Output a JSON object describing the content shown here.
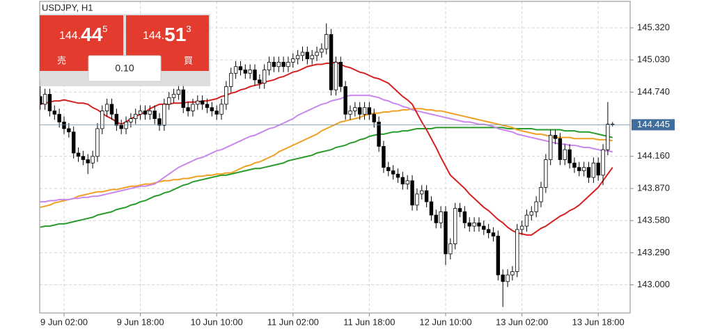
{
  "chart_data": {
    "type": "candlestick",
    "title": "USDJPY, H1",
    "categories": [
      null,
      null,
      null,
      null,
      null,
      "9 Jun 02:00",
      null,
      null,
      null,
      null,
      null,
      null,
      null,
      null,
      null,
      null,
      null,
      null,
      null,
      null,
      null,
      "9 Jun 18:00",
      null,
      null,
      null,
      null,
      null,
      null,
      null,
      null,
      null,
      null,
      null,
      null,
      null,
      null,
      null,
      "10 Jun 10:00",
      null,
      null,
      null,
      null,
      null,
      null,
      null,
      null,
      null,
      null,
      null,
      null,
      null,
      null,
      null,
      "11 Jun 02:00",
      null,
      null,
      null,
      null,
      null,
      null,
      null,
      null,
      null,
      null,
      null,
      null,
      null,
      null,
      null,
      "11 Jun 18:00",
      null,
      null,
      null,
      null,
      null,
      null,
      null,
      null,
      null,
      null,
      null,
      null,
      null,
      null,
      null,
      "12 Jun 10:00",
      null,
      null,
      null,
      null,
      null,
      null,
      null,
      null,
      null,
      null,
      null,
      null,
      null,
      null,
      null,
      "13 Jun 02:00",
      null,
      null,
      null,
      null,
      null,
      null,
      null,
      null,
      null,
      null,
      null,
      null,
      null,
      null,
      null,
      "13 Jun 18:00",
      null,
      null,
      null
    ],
    "open": [
      144.7,
      144.63,
      144.72,
      144.57,
      144.54,
      144.47,
      144.41,
      144.38,
      144.19,
      144.16,
      144.13,
      144.1,
      144.16,
      144.41,
      144.57,
      144.63,
      144.54,
      144.44,
      144.41,
      144.47,
      144.5,
      144.54,
      144.57,
      144.54,
      144.57,
      144.5,
      144.44,
      144.63,
      144.69,
      144.72,
      144.76,
      144.6,
      144.57,
      144.63,
      144.66,
      144.63,
      144.6,
      144.57,
      144.54,
      144.63,
      144.79,
      144.91,
      144.97,
      144.94,
      144.91,
      144.94,
      144.85,
      144.82,
      144.94,
      145.01,
      144.97,
      145.01,
      144.97,
      145.01,
      145.04,
      145.07,
      145.1,
      145.04,
      145.07,
      145.1,
      145.13,
      145.26,
      144.76,
      145.01,
      144.79,
      144.54,
      144.57,
      144.6,
      144.54,
      144.6,
      144.54,
      144.47,
      144.25,
      144.06,
      144.03,
      144.0,
      143.97,
      143.91,
      143.94,
      143.72,
      143.82,
      143.85,
      143.75,
      143.63,
      143.56,
      143.66,
      143.28,
      143.37,
      143.69,
      143.66,
      143.56,
      143.53,
      143.56,
      143.53,
      143.5,
      143.47,
      143.44,
      143.09,
      143.03,
      143.09,
      143.12,
      143.5,
      143.53,
      143.63,
      143.66,
      143.75,
      143.88,
      144.13,
      144.35,
      144.32,
      144.13,
      144.22,
      144.1,
      144.06,
      144.03,
      144.06,
      143.97,
      144.1,
      143.99,
      144.22,
      144.45
    ],
    "high": [
      144.85,
      144.77,
      144.77,
      144.62,
      144.59,
      144.52,
      144.46,
      144.43,
      144.24,
      144.21,
      144.18,
      144.21,
      144.46,
      144.62,
      144.68,
      144.68,
      144.59,
      144.49,
      144.52,
      144.55,
      144.59,
      144.62,
      144.62,
      144.62,
      144.62,
      144.55,
      144.68,
      144.74,
      144.77,
      144.81,
      144.81,
      144.65,
      144.68,
      144.71,
      144.71,
      144.68,
      144.65,
      144.62,
      144.68,
      144.84,
      144.96,
      145.02,
      145.02,
      144.99,
      144.99,
      144.99,
      144.9,
      144.99,
      145.06,
      145.06,
      145.06,
      145.06,
      145.06,
      145.09,
      145.12,
      145.15,
      145.15,
      145.12,
      145.15,
      145.18,
      145.36,
      145.31,
      145.06,
      145.06,
      144.84,
      144.62,
      144.65,
      144.65,
      144.65,
      144.65,
      144.59,
      144.52,
      144.3,
      144.11,
      144.08,
      144.05,
      144.02,
      143.99,
      143.99,
      143.87,
      143.9,
      143.9,
      143.8,
      143.68,
      143.71,
      143.71,
      143.42,
      143.74,
      143.74,
      143.71,
      143.61,
      143.61,
      143.61,
      143.58,
      143.55,
      143.52,
      143.49,
      143.14,
      143.14,
      143.17,
      143.55,
      143.58,
      143.68,
      143.71,
      143.8,
      143.93,
      144.18,
      144.4,
      144.4,
      144.37,
      144.27,
      144.27,
      144.15,
      144.11,
      144.11,
      144.11,
      144.15,
      144.15,
      144.27,
      144.65,
      144.47
    ],
    "low": [
      144.58,
      144.58,
      144.52,
      144.49,
      144.42,
      144.36,
      144.33,
      144.14,
      144.11,
      144.08,
      144.0,
      144.05,
      144.11,
      144.36,
      144.52,
      144.49,
      144.39,
      144.36,
      144.36,
      144.42,
      144.45,
      144.49,
      144.49,
      144.49,
      144.45,
      144.39,
      144.39,
      144.58,
      144.64,
      144.67,
      144.55,
      144.52,
      144.52,
      144.58,
      144.58,
      144.55,
      144.52,
      144.49,
      144.49,
      144.58,
      144.74,
      144.86,
      144.89,
      144.86,
      144.86,
      144.8,
      144.77,
      144.77,
      144.89,
      144.92,
      144.92,
      144.92,
      144.92,
      144.96,
      144.99,
      145.02,
      144.99,
      144.99,
      145.02,
      145.05,
      145.08,
      144.71,
      144.71,
      144.74,
      144.49,
      144.49,
      144.52,
      144.49,
      144.49,
      144.49,
      144.42,
      144.2,
      144.01,
      143.98,
      143.95,
      143.92,
      143.86,
      143.86,
      143.67,
      143.67,
      143.77,
      143.7,
      143.58,
      143.51,
      143.51,
      143.18,
      143.23,
      143.32,
      143.61,
      143.51,
      143.48,
      143.48,
      143.48,
      143.45,
      143.42,
      143.39,
      143.04,
      142.8,
      142.98,
      143.04,
      143.07,
      143.45,
      143.48,
      143.58,
      143.61,
      143.7,
      143.83,
      144.08,
      144.27,
      144.08,
      144.08,
      144.05,
      144.01,
      143.98,
      143.98,
      143.92,
      143.92,
      143.94,
      143.9,
      144.17,
      144.43
    ],
    "close": [
      144.63,
      144.72,
      144.57,
      144.54,
      144.47,
      144.41,
      144.38,
      144.19,
      144.16,
      144.13,
      144.1,
      144.16,
      144.41,
      144.57,
      144.63,
      144.54,
      144.44,
      144.41,
      144.47,
      144.5,
      144.54,
      144.57,
      144.54,
      144.57,
      144.5,
      144.44,
      144.63,
      144.69,
      144.72,
      144.76,
      144.6,
      144.57,
      144.63,
      144.66,
      144.63,
      144.6,
      144.57,
      144.54,
      144.63,
      144.79,
      144.91,
      144.97,
      144.94,
      144.91,
      144.94,
      144.85,
      144.82,
      144.94,
      145.01,
      144.97,
      145.01,
      144.97,
      145.01,
      145.04,
      145.07,
      145.1,
      145.04,
      145.07,
      145.1,
      145.13,
      145.26,
      144.76,
      145.01,
      144.79,
      144.54,
      144.57,
      144.6,
      144.54,
      144.6,
      144.54,
      144.47,
      144.25,
      144.06,
      144.03,
      144.0,
      143.97,
      143.91,
      143.94,
      143.72,
      143.82,
      143.85,
      143.75,
      143.63,
      143.56,
      143.66,
      143.28,
      143.37,
      143.69,
      143.66,
      143.56,
      143.53,
      143.56,
      143.53,
      143.5,
      143.47,
      143.44,
      143.09,
      143.03,
      143.09,
      143.12,
      143.5,
      143.53,
      143.63,
      143.66,
      143.75,
      143.88,
      144.13,
      144.35,
      144.32,
      144.13,
      144.22,
      144.1,
      144.06,
      144.03,
      144.06,
      143.97,
      144.1,
      143.99,
      144.22,
      144.45,
      144.45
    ],
    "series": [
      {
        "color": "#2a9a2a",
        "values": [
          143.52,
          143.53,
          143.53,
          143.54,
          143.55,
          143.55,
          143.56,
          143.57,
          143.58,
          143.59,
          143.6,
          143.61,
          143.63,
          143.64,
          143.65,
          143.66,
          143.68,
          143.69,
          143.7,
          143.72,
          143.73,
          143.75,
          143.76,
          143.78,
          143.8,
          143.81,
          143.83,
          143.84,
          143.86,
          143.88,
          143.9,
          143.91,
          143.93,
          143.94,
          143.95,
          143.96,
          143.97,
          143.98,
          143.99,
          143.99,
          144.0,
          144.01,
          144.02,
          144.03,
          144.04,
          144.05,
          144.05,
          144.06,
          144.07,
          144.08,
          144.09,
          144.1,
          144.12,
          144.13,
          144.14,
          144.15,
          144.16,
          144.17,
          144.19,
          144.2,
          144.21,
          144.22,
          144.24,
          144.25,
          144.26,
          144.28,
          144.29,
          144.31,
          144.32,
          144.34,
          144.35,
          144.36,
          144.36,
          144.37,
          144.38,
          144.38,
          144.39,
          144.39,
          144.4,
          144.41,
          144.41,
          144.41,
          144.41,
          144.42,
          144.42,
          144.42,
          144.42,
          144.42,
          144.42,
          144.42,
          144.42,
          144.42,
          144.42,
          144.42,
          144.42,
          144.42,
          144.42,
          144.42,
          144.41,
          144.41,
          144.41,
          144.41,
          144.41,
          144.41,
          144.4,
          144.4,
          144.4,
          144.4,
          144.4,
          144.4,
          144.39,
          144.39,
          144.39,
          144.38,
          144.38,
          144.38,
          144.37,
          144.36,
          144.35,
          144.34,
          144.33
        ]
      },
      {
        "color": "#f0a020",
        "values": [
          143.7,
          143.71,
          143.72,
          143.74,
          143.75,
          143.76,
          143.77,
          143.78,
          143.8,
          143.81,
          143.82,
          143.83,
          143.84,
          143.84,
          143.85,
          143.86,
          143.86,
          143.87,
          143.88,
          143.89,
          143.89,
          143.9,
          143.91,
          143.91,
          143.92,
          143.93,
          143.94,
          143.94,
          143.95,
          143.95,
          143.96,
          143.96,
          143.97,
          143.98,
          143.98,
          143.99,
          143.99,
          144.0,
          144.0,
          144.01,
          144.01,
          144.03,
          144.05,
          144.07,
          144.08,
          144.1,
          144.11,
          144.13,
          144.15,
          144.17,
          144.2,
          144.22,
          144.24,
          144.26,
          144.28,
          144.3,
          144.32,
          144.34,
          144.36,
          144.39,
          144.41,
          144.43,
          144.45,
          144.47,
          144.48,
          144.49,
          144.5,
          144.51,
          144.53,
          144.54,
          144.55,
          144.55,
          144.56,
          144.56,
          144.57,
          144.57,
          144.58,
          144.58,
          144.59,
          144.59,
          144.59,
          144.58,
          144.58,
          144.57,
          144.57,
          144.56,
          144.55,
          144.54,
          144.53,
          144.52,
          144.51,
          144.5,
          144.49,
          144.48,
          144.47,
          144.46,
          144.45,
          144.44,
          144.43,
          144.42,
          144.4,
          144.39,
          144.38,
          144.37,
          144.36,
          144.36,
          144.35,
          144.34,
          144.33,
          144.33,
          144.33,
          144.33,
          144.32,
          144.32,
          144.32,
          144.32,
          144.32,
          144.31,
          144.31,
          144.31,
          144.3
        ]
      },
      {
        "color": "#c986ec",
        "values": [
          143.75,
          143.75,
          143.76,
          143.76,
          143.77,
          143.77,
          143.77,
          143.78,
          143.78,
          143.79,
          143.79,
          143.8,
          143.8,
          143.81,
          143.82,
          143.83,
          143.84,
          143.85,
          143.86,
          143.87,
          143.88,
          143.89,
          143.89,
          143.9,
          143.91,
          143.94,
          143.97,
          144.0,
          144.03,
          144.06,
          144.08,
          144.1,
          144.12,
          144.14,
          144.15,
          144.17,
          144.19,
          144.21,
          144.22,
          144.24,
          144.26,
          144.28,
          144.3,
          144.32,
          144.34,
          144.35,
          144.37,
          144.39,
          144.41,
          144.42,
          144.44,
          144.46,
          144.48,
          144.5,
          144.53,
          144.55,
          144.57,
          144.59,
          144.61,
          144.63,
          144.64,
          144.66,
          144.67,
          144.68,
          144.7,
          144.71,
          144.71,
          144.71,
          144.71,
          144.71,
          144.7,
          144.69,
          144.67,
          144.66,
          144.64,
          144.63,
          144.61,
          144.6,
          144.58,
          144.57,
          144.56,
          144.55,
          144.54,
          144.53,
          144.52,
          144.51,
          144.5,
          144.49,
          144.48,
          144.47,
          144.47,
          144.46,
          144.45,
          144.45,
          144.44,
          144.43,
          144.41,
          144.4,
          144.39,
          144.38,
          144.36,
          144.35,
          144.34,
          144.33,
          144.32,
          144.31,
          144.3,
          144.29,
          144.28,
          144.27,
          144.27,
          144.26,
          144.26,
          144.25,
          144.24,
          144.24,
          144.23,
          144.22,
          144.21,
          144.21,
          144.2
        ]
      },
      {
        "color": "#d62020",
        "values": [
          144.63,
          144.64,
          144.65,
          144.66,
          144.66,
          144.67,
          144.66,
          144.65,
          144.64,
          144.64,
          144.63,
          144.6,
          144.58,
          144.55,
          144.52,
          144.5,
          144.47,
          144.45,
          144.47,
          144.5,
          144.52,
          144.54,
          144.56,
          144.59,
          144.61,
          144.63,
          144.63,
          144.63,
          144.64,
          144.64,
          144.64,
          144.65,
          144.65,
          144.65,
          144.66,
          144.66,
          144.67,
          144.68,
          144.7,
          144.71,
          144.73,
          144.74,
          144.76,
          144.77,
          144.79,
          144.8,
          144.81,
          144.83,
          144.84,
          144.85,
          144.87,
          144.88,
          144.9,
          144.92,
          144.93,
          144.95,
          144.97,
          144.98,
          144.99,
          144.99,
          145.0,
          145.0,
          145.01,
          144.99,
          144.97,
          144.96,
          144.94,
          144.92,
          144.91,
          144.89,
          144.87,
          144.86,
          144.84,
          144.82,
          144.78,
          144.74,
          144.7,
          144.67,
          144.63,
          144.55,
          144.47,
          144.4,
          144.32,
          144.24,
          144.15,
          144.07,
          143.99,
          143.95,
          143.91,
          143.87,
          143.82,
          143.78,
          143.74,
          143.7,
          143.67,
          143.63,
          143.59,
          143.56,
          143.52,
          143.49,
          143.47,
          143.46,
          143.45,
          143.45,
          143.48,
          143.51,
          143.53,
          143.56,
          143.59,
          143.62,
          143.64,
          143.67,
          143.69,
          143.72,
          143.76,
          143.8,
          143.84,
          143.88,
          143.94,
          144.0,
          144.06
        ]
      }
    ],
    "current_price": 144.445,
    "ylim": [
      142.746,
      145.571
    ],
    "yticks": [
      {
        "value": 143.0,
        "label": "143.000"
      },
      {
        "value": 143.29,
        "label": "143.290"
      },
      {
        "value": 143.58,
        "label": "143.580"
      },
      {
        "value": 143.87,
        "label": "143.870"
      },
      {
        "value": 144.16,
        "label": "144.160"
      },
      {
        "value": 144.74,
        "label": "144.740"
      },
      {
        "value": 145.03,
        "label": "145.030"
      },
      {
        "value": 145.32,
        "label": "145.320"
      }
    ],
    "grid": true
  },
  "trade_panel": {
    "sell": {
      "price_prefix": "144.",
      "price_big": "44",
      "price_super": "5",
      "label": "売"
    },
    "buy": {
      "price_prefix": "144.",
      "price_big": "51",
      "price_super": "3",
      "label": "買"
    },
    "volume": "0.10"
  }
}
